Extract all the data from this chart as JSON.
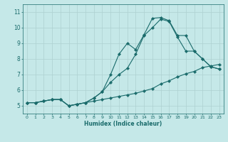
{
  "xlabel": "Humidex (Indice chaleur)",
  "ylabel": "",
  "bg_color": "#c5e8e8",
  "grid_color": "#add0d0",
  "line_color": "#1a6b6b",
  "marker": "D",
  "marker_size": 2.2,
  "line_width": 0.8,
  "xlim": [
    -0.5,
    23.5
  ],
  "ylim": [
    4.5,
    11.5
  ],
  "xticks": [
    0,
    1,
    2,
    3,
    4,
    5,
    6,
    7,
    8,
    9,
    10,
    11,
    12,
    13,
    14,
    15,
    16,
    17,
    18,
    19,
    20,
    21,
    22,
    23
  ],
  "yticks": [
    5,
    6,
    7,
    8,
    9,
    10,
    11
  ],
  "line1_x": [
    0,
    1,
    2,
    3,
    4,
    5,
    6,
    7,
    8,
    9,
    10,
    11,
    12,
    13,
    14,
    15,
    16,
    17,
    18,
    19,
    20,
    21,
    22,
    23
  ],
  "line1_y": [
    5.2,
    5.2,
    5.3,
    5.4,
    5.4,
    5.0,
    5.1,
    5.2,
    5.3,
    5.4,
    5.5,
    5.6,
    5.7,
    5.8,
    5.95,
    6.1,
    6.4,
    6.6,
    6.85,
    7.05,
    7.2,
    7.45,
    7.55,
    7.65
  ],
  "line2_x": [
    0,
    1,
    2,
    3,
    4,
    5,
    6,
    7,
    8,
    9,
    10,
    11,
    12,
    13,
    14,
    15,
    16,
    17,
    18,
    19,
    20,
    21,
    22,
    23
  ],
  "line2_y": [
    5.2,
    5.2,
    5.3,
    5.4,
    5.4,
    5.0,
    5.1,
    5.2,
    5.5,
    5.9,
    6.5,
    7.0,
    7.4,
    8.3,
    9.5,
    10.0,
    10.55,
    10.4,
    9.4,
    8.5,
    8.5,
    8.0,
    7.5,
    7.35
  ],
  "line3_x": [
    0,
    1,
    2,
    3,
    4,
    5,
    6,
    7,
    8,
    9,
    10,
    11,
    12,
    13,
    14,
    15,
    16,
    17,
    18,
    19,
    20,
    21,
    22,
    23
  ],
  "line3_y": [
    5.2,
    5.2,
    5.3,
    5.4,
    5.4,
    5.0,
    5.1,
    5.2,
    5.5,
    5.9,
    7.0,
    8.3,
    9.0,
    8.6,
    9.55,
    10.6,
    10.65,
    10.45,
    9.5,
    9.5,
    8.5,
    8.0,
    7.5,
    7.35
  ]
}
